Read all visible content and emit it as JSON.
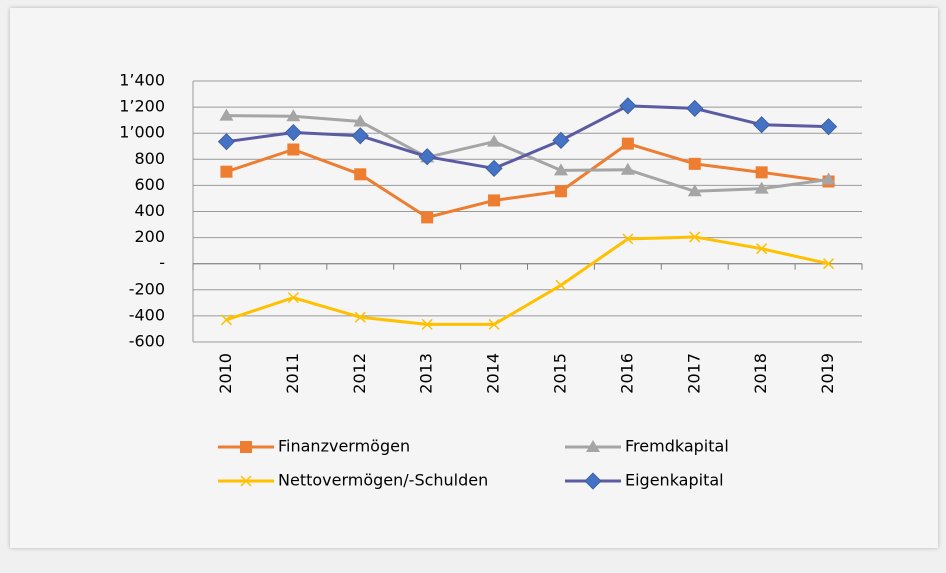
{
  "chart_data": {
    "type": "line",
    "categories": [
      "2010",
      "2011",
      "2012",
      "2013",
      "2014",
      "2015",
      "2016",
      "2017",
      "2018",
      "2019"
    ],
    "series": [
      {
        "name": "Finanzvermögen",
        "color": "#ed7d31",
        "marker": "square",
        "marker_color": "#ed7d31",
        "values": [
          705,
          875,
          685,
          355,
          485,
          555,
          920,
          765,
          700,
          630
        ]
      },
      {
        "name": "Fremdkapital",
        "color": "#a5a5a5",
        "marker": "triangle",
        "marker_color": "#a5a5a5",
        "values": [
          1135,
          1130,
          1090,
          815,
          935,
          715,
          720,
          555,
          575,
          645
        ]
      },
      {
        "name": "Nettovermögen/-Schulden",
        "color": "#ffc000",
        "marker": "x",
        "marker_color": "#ffc000",
        "values": [
          -430,
          -260,
          -410,
          -465,
          -465,
          -165,
          190,
          205,
          115,
          0
        ]
      },
      {
        "name": "Eigenkapital",
        "color": "#5b5ba3",
        "marker": "diamond",
        "marker_color": "#4472c4",
        "values": [
          935,
          1005,
          980,
          820,
          730,
          945,
          1210,
          1190,
          1065,
          1050
        ]
      }
    ],
    "ylim": [
      -600,
      1400
    ],
    "yticks": [
      -600,
      -400,
      -200,
      {
        "value": 0,
        "label": "-"
      },
      200,
      400,
      600,
      800,
      {
        "value": 1000,
        "label": "1’000"
      },
      {
        "value": 1200,
        "label": "1’200"
      },
      {
        "value": 1400,
        "label": "1’400"
      }
    ],
    "grid": true,
    "legend": "bottom"
  }
}
